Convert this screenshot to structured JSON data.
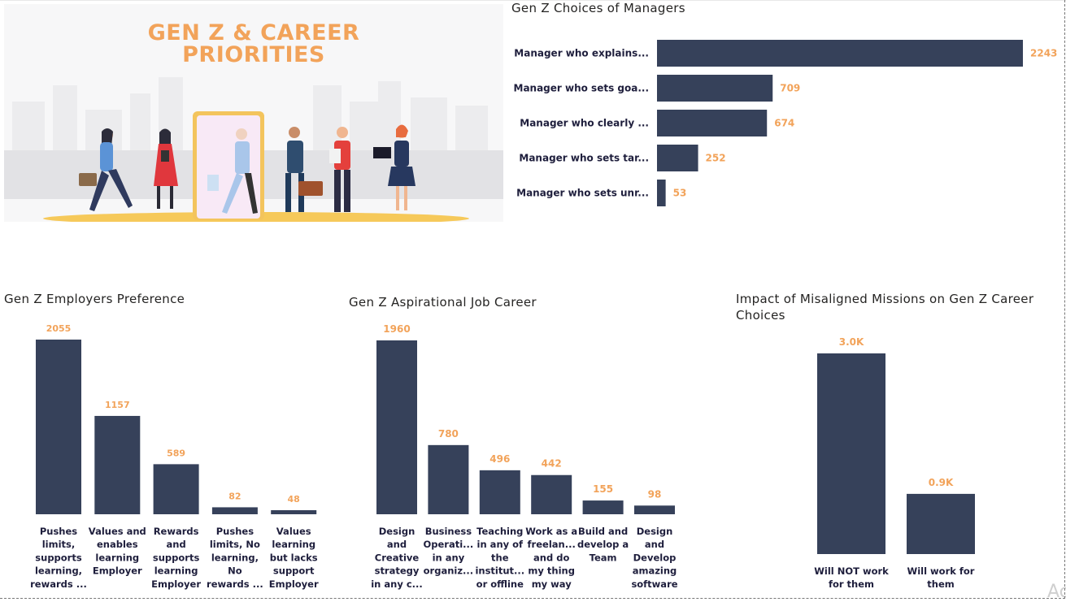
{
  "banner": {
    "title_line1": "GEN Z & CAREER",
    "title_line2": "PRIORITIES"
  },
  "colors": {
    "bar": "#36415a",
    "data_label": "#f2a35a",
    "category_text": "#1e1e3c",
    "title_text": "#252423"
  },
  "watermark": "Ac",
  "chart_data": [
    {
      "id": "managers",
      "type": "bar",
      "orientation": "horizontal",
      "title": "Gen Z Choices of Managers",
      "categories": [
        "Manager who explains...",
        "Manager who sets goa...",
        "Manager who clearly ...",
        "Manager who sets tar...",
        "Manager who sets unr..."
      ],
      "values": [
        2243,
        709,
        674,
        252,
        53
      ],
      "data_labels": [
        "2243",
        "709",
        "674",
        "252",
        "53"
      ],
      "xlabel": "",
      "ylabel": "",
      "xlim": [
        0,
        2243
      ]
    },
    {
      "id": "employers",
      "type": "bar",
      "orientation": "vertical",
      "title": "Gen Z Employers Preference",
      "categories": [
        [
          "Pushes",
          "limits,",
          "supports",
          "learning,",
          "rewards ..."
        ],
        [
          "Values and",
          "enables",
          "learning",
          "Employer"
        ],
        [
          "Rewards",
          "and",
          "supports",
          "learning",
          "Employer"
        ],
        [
          "Pushes",
          "limits, No",
          "learning,",
          "No",
          "rewards ..."
        ],
        [
          "Values",
          "learning",
          "but lacks",
          "support",
          "Employer"
        ]
      ],
      "values": [
        2055,
        1157,
        589,
        82,
        48
      ],
      "data_labels": [
        "2055",
        "1157",
        "589",
        "82",
        "48"
      ],
      "xlabel": "",
      "ylabel": "",
      "ylim": [
        0,
        2055
      ]
    },
    {
      "id": "aspirational",
      "type": "bar",
      "orientation": "vertical",
      "title": "Gen Z Aspirational Job Career",
      "categories": [
        [
          "Design",
          "and",
          "Creative",
          "strategy",
          "in any c..."
        ],
        [
          "Business",
          "Operati...",
          "in any",
          "organiz..."
        ],
        [
          "Teaching",
          "in any of",
          "the",
          "institut...",
          "or offline"
        ],
        [
          "Work as a",
          "freelan...",
          "and do",
          "my thing",
          "my way"
        ],
        [
          "Build and",
          "develop a",
          "Team"
        ],
        [
          "Design",
          "and",
          "Develop",
          "amazing",
          "software"
        ]
      ],
      "values": [
        1960,
        780,
        496,
        442,
        155,
        98
      ],
      "data_labels": [
        "1960",
        "780",
        "496",
        "442",
        "155",
        "98"
      ],
      "xlabel": "",
      "ylabel": "",
      "ylim": [
        0,
        1960
      ]
    },
    {
      "id": "missions",
      "type": "bar",
      "orientation": "vertical",
      "title": "Impact of Misaligned Missions on Gen Z Career Choices",
      "title_lines": [
        "Impact of Misaligned Missions on Gen Z Career",
        "Choices"
      ],
      "categories": [
        [
          "Will NOT work",
          "for them"
        ],
        [
          "Will work for",
          "them"
        ]
      ],
      "values": [
        3000,
        900
      ],
      "data_labels": [
        "3.0K",
        "0.9K"
      ],
      "xlabel": "",
      "ylabel": "",
      "ylim": [
        0,
        3000
      ]
    }
  ]
}
